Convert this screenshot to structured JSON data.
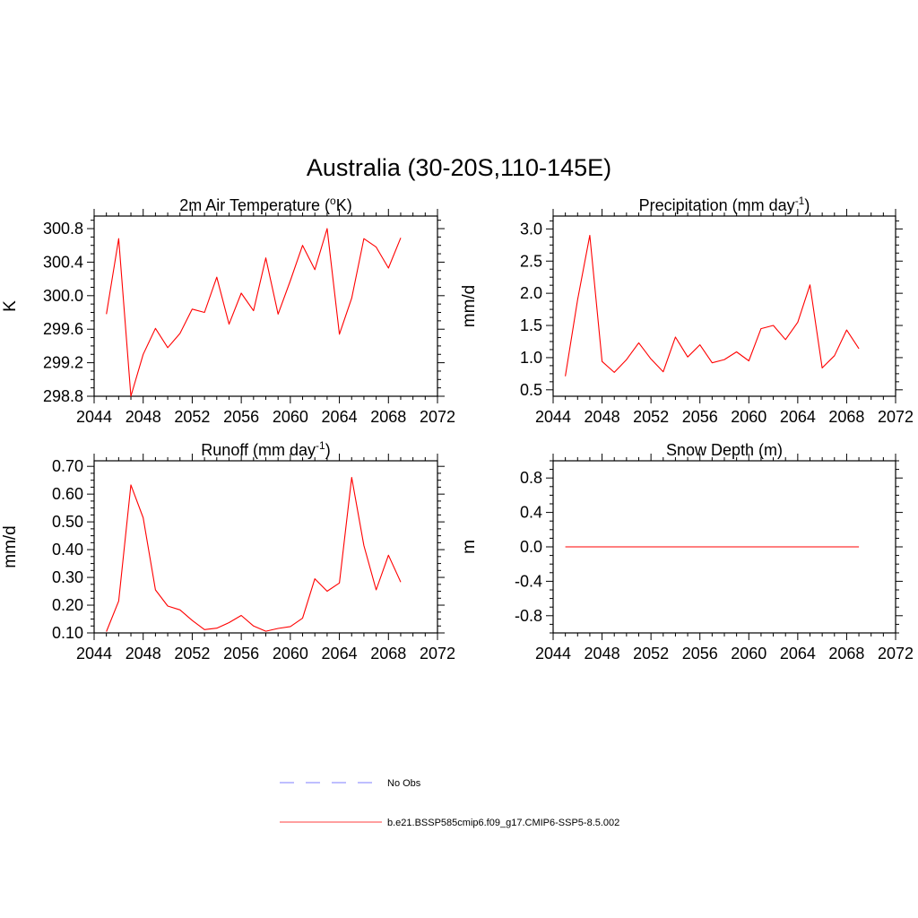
{
  "figure": {
    "title": "Australia (30-20S,110-145E)"
  },
  "chart_data": [
    {
      "type": "line",
      "title_main": "2m Air Temperature (",
      "title_sup": "o",
      "title_end": "K)",
      "ylabel": "K",
      "xlim": [
        2044,
        2072
      ],
      "ylim": [
        298.8,
        300.95
      ],
      "xticks": [
        "2044",
        "2048",
        "2052",
        "2056",
        "2060",
        "2064",
        "2068",
        "2072"
      ],
      "yticks": [
        "298.8",
        "299.2",
        "299.6",
        "300.0",
        "300.4",
        "300.8"
      ],
      "series": [
        {
          "color": "#ff0000",
          "x": [
            2045,
            2046,
            2047,
            2048,
            2049,
            2050,
            2051,
            2052,
            2053,
            2054,
            2055,
            2056,
            2057,
            2058,
            2059,
            2060,
            2061,
            2062,
            2063,
            2064,
            2065,
            2066,
            2067,
            2068,
            2069
          ],
          "y": [
            299.78,
            300.68,
            298.8,
            299.3,
            299.61,
            299.38,
            299.55,
            299.84,
            299.8,
            300.22,
            299.66,
            300.03,
            299.82,
            300.45,
            299.78,
            300.18,
            300.6,
            300.31,
            300.8,
            299.54,
            299.97,
            300.68,
            300.58,
            300.33,
            300.69
          ]
        }
      ]
    },
    {
      "type": "line",
      "title_main": "Precipitation (mm day",
      "title_sup": "-1",
      "title_end": ")",
      "ylabel": "mm/d",
      "xlim": [
        2044,
        2072
      ],
      "ylim": [
        0.4,
        3.2
      ],
      "xticks": [
        "2044",
        "2048",
        "2052",
        "2056",
        "2060",
        "2064",
        "2068",
        "2072"
      ],
      "yticks": [
        "0.5",
        "1.0",
        "1.5",
        "2.0",
        "2.5",
        "3.0"
      ],
      "series": [
        {
          "color": "#ff0000",
          "x": [
            2045,
            2046,
            2047,
            2048,
            2049,
            2050,
            2051,
            2052,
            2053,
            2054,
            2055,
            2056,
            2057,
            2058,
            2059,
            2060,
            2061,
            2062,
            2063,
            2064,
            2065,
            2066,
            2067,
            2068,
            2069
          ],
          "y": [
            0.71,
            1.9,
            2.9,
            0.94,
            0.77,
            0.97,
            1.23,
            0.98,
            0.78,
            1.32,
            1.01,
            1.2,
            0.92,
            0.97,
            1.09,
            0.95,
            1.45,
            1.5,
            1.28,
            1.55,
            2.13,
            0.84,
            1.03,
            1.43,
            1.14
          ]
        }
      ]
    },
    {
      "type": "line",
      "title_main": "Runoff (mm day",
      "title_sup": "-1",
      "title_end": ")",
      "ylabel": "mm/d",
      "xlim": [
        2044,
        2072
      ],
      "ylim": [
        0.1,
        0.72
      ],
      "xticks": [
        "2044",
        "2048",
        "2052",
        "2056",
        "2060",
        "2064",
        "2068",
        "2072"
      ],
      "yticks": [
        "0.10",
        "0.20",
        "0.30",
        "0.40",
        "0.50",
        "0.60",
        "0.70"
      ],
      "series": [
        {
          "color": "#ff0000",
          "x": [
            2045,
            2046,
            2047,
            2048,
            2049,
            2050,
            2051,
            2052,
            2053,
            2054,
            2055,
            2056,
            2057,
            2058,
            2059,
            2060,
            2061,
            2062,
            2063,
            2064,
            2065,
            2066,
            2067,
            2068,
            2069
          ],
          "y": [
            0.105,
            0.215,
            0.633,
            0.515,
            0.255,
            0.197,
            0.183,
            0.145,
            0.112,
            0.117,
            0.137,
            0.163,
            0.125,
            0.106,
            0.116,
            0.123,
            0.153,
            0.295,
            0.25,
            0.28,
            0.66,
            0.415,
            0.255,
            0.38,
            0.283
          ]
        }
      ]
    },
    {
      "type": "line",
      "title_main": "Snow Depth (m)",
      "title_sup": "",
      "title_end": "",
      "ylabel": "m",
      "xlim": [
        2044,
        2072
      ],
      "ylim": [
        -1.0,
        1.0
      ],
      "xticks": [
        "2044",
        "2048",
        "2052",
        "2056",
        "2060",
        "2064",
        "2068",
        "2072"
      ],
      "yticks": [
        "-0.8",
        "-0.4",
        "0.0",
        "0.4",
        "0.8"
      ],
      "series": [
        {
          "color": "#ff0000",
          "x": [
            2045,
            2069
          ],
          "y": [
            0.0,
            0.0
          ]
        }
      ]
    }
  ],
  "legend": {
    "position": "bottom-center",
    "items": [
      {
        "label": "No Obs",
        "color": "#9999ff",
        "style": "dashed"
      },
      {
        "label": "b.e21.BSSP585cmip6.f09_g17.CMIP6-SSP5-8.5.002",
        "color": "#ff6666",
        "style": "solid"
      }
    ]
  }
}
